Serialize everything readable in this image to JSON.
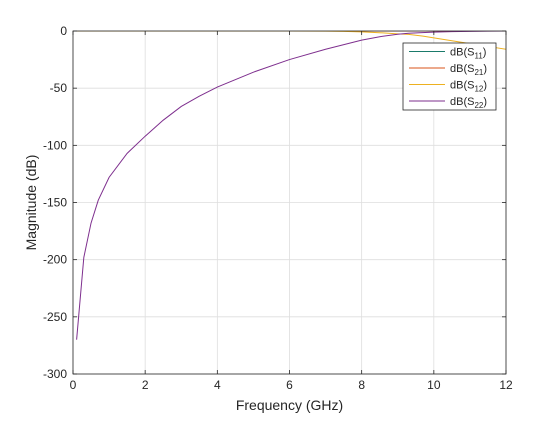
{
  "chart_data": {
    "type": "line",
    "xlabel": "Frequency (GHz)",
    "ylabel": "Magnitude (dB)",
    "xlim": [
      0,
      12
    ],
    "ylim": [
      -300,
      0
    ],
    "xticks": [
      0,
      2,
      4,
      6,
      8,
      10,
      12
    ],
    "yticks": [
      0,
      -50,
      -100,
      -150,
      -200,
      -250,
      -300
    ],
    "grid": true,
    "legend_position": "top-right",
    "series": [
      {
        "name": "dB(S11)",
        "legend_base": "dB(S",
        "legend_sub": "11",
        "legend_end": ")",
        "color": "#1a7a6a",
        "x": [
          0.1,
          1,
          2,
          3,
          4,
          5,
          6,
          7,
          8,
          9,
          10,
          11,
          12
        ],
        "y": [
          0,
          0,
          0,
          0,
          0,
          0,
          0,
          0,
          0,
          0,
          0,
          0,
          0
        ]
      },
      {
        "name": "dB(S21)",
        "legend_base": "dB(S",
        "legend_sub": "21",
        "legend_end": ")",
        "color": "#d95319",
        "x": [
          0.1,
          1,
          2,
          3,
          4,
          5,
          6,
          7,
          8,
          9,
          10,
          11,
          12
        ],
        "y": [
          0,
          0,
          0,
          0,
          0,
          0,
          0,
          0,
          0,
          0,
          0,
          0,
          0
        ]
      },
      {
        "name": "dB(S12)",
        "legend_base": "dB(S",
        "legend_sub": "12",
        "legend_end": ")",
        "color": "#edb120",
        "x": [
          0.1,
          1,
          2,
          3,
          4,
          5,
          6,
          7,
          7.5,
          8,
          8.5,
          9,
          9.3,
          9.7,
          10,
          10.5,
          11,
          11.5,
          12
        ],
        "y": [
          0,
          0,
          0,
          0,
          0,
          0,
          0,
          -0.1,
          -0.3,
          -0.8,
          -1.5,
          -2.5,
          -3,
          -4.5,
          -6,
          -8.5,
          -11,
          -13.5,
          -16
        ]
      },
      {
        "name": "dB(S22)",
        "legend_base": "dB(S",
        "legend_sub": "22",
        "legend_end": ")",
        "color": "#7e2f8e",
        "x": [
          0.1,
          0.3,
          0.5,
          0.7,
          1,
          1.5,
          2,
          2.5,
          3,
          3.5,
          4,
          5,
          6,
          7,
          8,
          8.5,
          9,
          9.3,
          9.6,
          10,
          10.5,
          11,
          11.5,
          12
        ],
        "y": [
          -270,
          -198,
          -168,
          -148,
          -128,
          -107,
          -92,
          -78,
          -66,
          -57,
          -49,
          -36,
          -25,
          -16,
          -8,
          -5,
          -2.8,
          -2,
          -1.5,
          -1,
          -0.5,
          -0.3,
          -0.1,
          0
        ]
      }
    ]
  }
}
